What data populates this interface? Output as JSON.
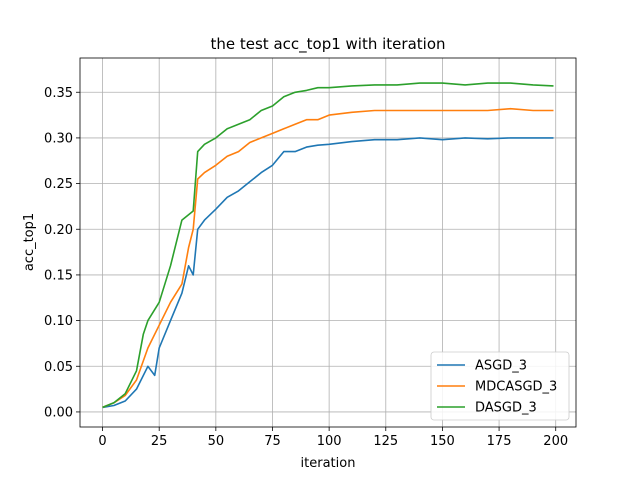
{
  "chart_data": {
    "type": "line",
    "title": "the test acc_top1 with iteration",
    "xlabel": "iteration",
    "ylabel": "acc_top1",
    "xlim": [
      -9.95,
      208.95
    ],
    "ylim": [
      -0.0165,
      0.3875
    ],
    "xticks": [
      0,
      25,
      50,
      75,
      100,
      125,
      150,
      175,
      200
    ],
    "xtick_labels": [
      "0",
      "25",
      "50",
      "75",
      "100",
      "125",
      "150",
      "175",
      "200"
    ],
    "yticks": [
      0.0,
      0.05,
      0.1,
      0.15,
      0.2,
      0.25,
      0.3,
      0.35
    ],
    "ytick_labels": [
      "0.00",
      "0.05",
      "0.10",
      "0.15",
      "0.20",
      "0.25",
      "0.30",
      "0.35"
    ],
    "grid": true,
    "legend_position": "lower-right",
    "series": [
      {
        "name": "ASGD_3",
        "color": "#1f77b4",
        "x": [
          0,
          5,
          10,
          15,
          20,
          23,
          25,
          30,
          35,
          38,
          40,
          42,
          45,
          50,
          55,
          60,
          65,
          70,
          75,
          80,
          85,
          90,
          95,
          100,
          110,
          120,
          130,
          140,
          150,
          160,
          170,
          180,
          190,
          199
        ],
        "y": [
          0.005,
          0.007,
          0.012,
          0.025,
          0.05,
          0.04,
          0.07,
          0.1,
          0.13,
          0.16,
          0.15,
          0.2,
          0.21,
          0.222,
          0.235,
          0.242,
          0.252,
          0.262,
          0.27,
          0.285,
          0.285,
          0.29,
          0.292,
          0.293,
          0.296,
          0.298,
          0.298,
          0.3,
          0.298,
          0.3,
          0.299,
          0.3,
          0.3,
          0.3
        ]
      },
      {
        "name": "MDCASGD_3",
        "color": "#ff7f0e",
        "x": [
          0,
          5,
          10,
          15,
          20,
          25,
          30,
          35,
          38,
          40,
          42,
          45,
          50,
          55,
          60,
          65,
          70,
          75,
          80,
          85,
          90,
          95,
          100,
          110,
          120,
          130,
          140,
          150,
          160,
          170,
          180,
          190,
          199
        ],
        "y": [
          0.005,
          0.01,
          0.018,
          0.035,
          0.07,
          0.095,
          0.12,
          0.14,
          0.18,
          0.2,
          0.255,
          0.262,
          0.27,
          0.28,
          0.285,
          0.295,
          0.3,
          0.305,
          0.31,
          0.315,
          0.32,
          0.32,
          0.325,
          0.328,
          0.33,
          0.33,
          0.33,
          0.33,
          0.33,
          0.33,
          0.332,
          0.33,
          0.33
        ]
      },
      {
        "name": "DASGD_3",
        "color": "#2ca02c",
        "x": [
          0,
          5,
          10,
          15,
          18,
          20,
          25,
          30,
          35,
          40,
          42,
          45,
          50,
          55,
          60,
          65,
          70,
          75,
          80,
          85,
          90,
          95,
          100,
          110,
          120,
          130,
          140,
          150,
          160,
          170,
          180,
          190,
          199
        ],
        "y": [
          0.005,
          0.01,
          0.02,
          0.045,
          0.085,
          0.1,
          0.12,
          0.16,
          0.21,
          0.22,
          0.285,
          0.293,
          0.3,
          0.31,
          0.315,
          0.32,
          0.33,
          0.335,
          0.345,
          0.35,
          0.352,
          0.355,
          0.355,
          0.357,
          0.358,
          0.358,
          0.36,
          0.36,
          0.358,
          0.36,
          0.36,
          0.358,
          0.357
        ]
      }
    ]
  }
}
